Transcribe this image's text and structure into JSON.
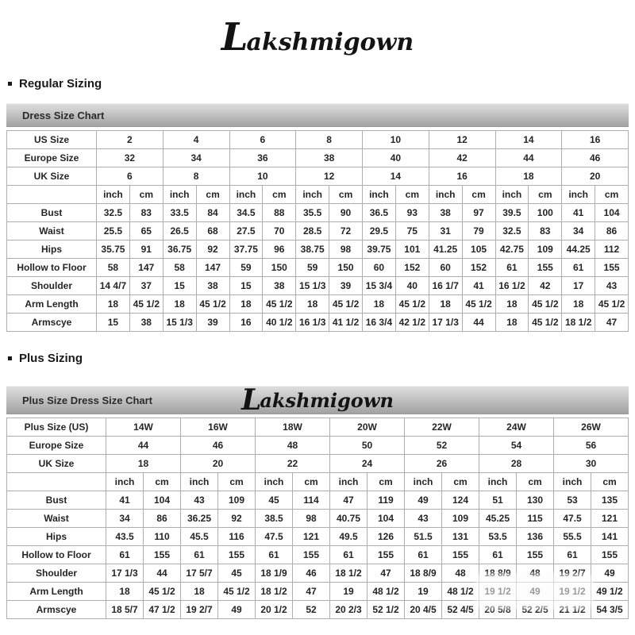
{
  "brand": {
    "logo_initial": "L",
    "logo_rest": "akshmigown"
  },
  "sections": {
    "regular": {
      "heading": "Regular Sizing",
      "chart_title": "Dress Size Chart"
    },
    "plus": {
      "heading": "Plus Sizing",
      "chart_title": "Plus Size Dress Size Chart"
    }
  },
  "regular_chart": {
    "units": [
      "inch",
      "cm"
    ],
    "size_rows": [
      {
        "label": "US Size",
        "values": [
          "2",
          "4",
          "6",
          "8",
          "10",
          "12",
          "14",
          "16"
        ]
      },
      {
        "label": "Europe Size",
        "values": [
          "32",
          "34",
          "36",
          "38",
          "40",
          "42",
          "44",
          "46"
        ]
      },
      {
        "label": "UK Size",
        "values": [
          "6",
          "8",
          "10",
          "12",
          "14",
          "16",
          "18",
          "20"
        ]
      }
    ],
    "measure_rows": [
      {
        "label": "Bust",
        "values": [
          "32.5",
          "83",
          "33.5",
          "84",
          "34.5",
          "88",
          "35.5",
          "90",
          "36.5",
          "93",
          "38",
          "97",
          "39.5",
          "100",
          "41",
          "104"
        ]
      },
      {
        "label": "Waist",
        "values": [
          "25.5",
          "65",
          "26.5",
          "68",
          "27.5",
          "70",
          "28.5",
          "72",
          "29.5",
          "75",
          "31",
          "79",
          "32.5",
          "83",
          "34",
          "86"
        ]
      },
      {
        "label": "Hips",
        "values": [
          "35.75",
          "91",
          "36.75",
          "92",
          "37.75",
          "96",
          "38.75",
          "98",
          "39.75",
          "101",
          "41.25",
          "105",
          "42.75",
          "109",
          "44.25",
          "112"
        ]
      },
      {
        "label": "Hollow to Floor",
        "values": [
          "58",
          "147",
          "58",
          "147",
          "59",
          "150",
          "59",
          "150",
          "60",
          "152",
          "60",
          "152",
          "61",
          "155",
          "61",
          "155"
        ]
      },
      {
        "label": "Shoulder",
        "values": [
          "14 4/7",
          "37",
          "15",
          "38",
          "15",
          "38",
          "15 1/3",
          "39",
          "15 3/4",
          "40",
          "16 1/7",
          "41",
          "16 1/2",
          "42",
          "17",
          "43"
        ]
      },
      {
        "label": "Arm Length",
        "values": [
          "18",
          "45 1/2",
          "18",
          "45 1/2",
          "18",
          "45 1/2",
          "18",
          "45 1/2",
          "18",
          "45 1/2",
          "18",
          "45 1/2",
          "18",
          "45 1/2",
          "18",
          "45 1/2"
        ]
      },
      {
        "label": "Armscye",
        "values": [
          "15",
          "38",
          "15 1/3",
          "39",
          "16",
          "40 1/2",
          "16 1/3",
          "41 1/2",
          "16 3/4",
          "42 1/2",
          "17 1/3",
          "44",
          "18",
          "45 1/2",
          "18 1/2",
          "47"
        ]
      }
    ]
  },
  "plus_chart": {
    "units": [
      "inch",
      "cm"
    ],
    "size_rows": [
      {
        "label": "Plus Size (US)",
        "values": [
          "14W",
          "16W",
          "18W",
          "20W",
          "22W",
          "24W",
          "26W"
        ]
      },
      {
        "label": "Europe Size",
        "values": [
          "44",
          "46",
          "48",
          "50",
          "52",
          "54",
          "56"
        ]
      },
      {
        "label": "UK Size",
        "values": [
          "18",
          "20",
          "22",
          "24",
          "26",
          "28",
          "30"
        ]
      }
    ],
    "measure_rows": [
      {
        "label": "Bust",
        "values": [
          "41",
          "104",
          "43",
          "109",
          "45",
          "114",
          "47",
          "119",
          "49",
          "124",
          "51",
          "130",
          "53",
          "135"
        ]
      },
      {
        "label": "Waist",
        "values": [
          "34",
          "86",
          "36.25",
          "92",
          "38.5",
          "98",
          "40.75",
          "104",
          "43",
          "109",
          "45.25",
          "115",
          "47.5",
          "121"
        ]
      },
      {
        "label": "Hips",
        "values": [
          "43.5",
          "110",
          "45.5",
          "116",
          "47.5",
          "121",
          "49.5",
          "126",
          "51.5",
          "131",
          "53.5",
          "136",
          "55.5",
          "141"
        ]
      },
      {
        "label": "Hollow to Floor",
        "values": [
          "61",
          "155",
          "61",
          "155",
          "61",
          "155",
          "61",
          "155",
          "61",
          "155",
          "61",
          "155",
          "61",
          "155"
        ]
      },
      {
        "label": "Shoulder",
        "values": [
          "17 1/3",
          "44",
          "17 5/7",
          "45",
          "18 1/9",
          "46",
          "18 1/2",
          "47",
          "18 8/9",
          "48",
          "18 8/9",
          "48",
          "19 2/7",
          "49"
        ]
      },
      {
        "label": "Arm Length",
        "values": [
          "18",
          "45 1/2",
          "18",
          "45 1/2",
          "18 1/2",
          "47",
          "19",
          "48 1/2",
          "19",
          "48 1/2",
          "19 1/2",
          "49",
          "19 1/2",
          "49 1/2"
        ]
      },
      {
        "label": "Armscye",
        "values": [
          "18 5/7",
          "47 1/2",
          "19 2/7",
          "49",
          "20 1/2",
          "52",
          "20 2/3",
          "52 1/2",
          "20 4/5",
          "52 4/5",
          "20 5/8",
          "52 2/5",
          "21 1/2",
          "54 3/5"
        ]
      }
    ]
  }
}
